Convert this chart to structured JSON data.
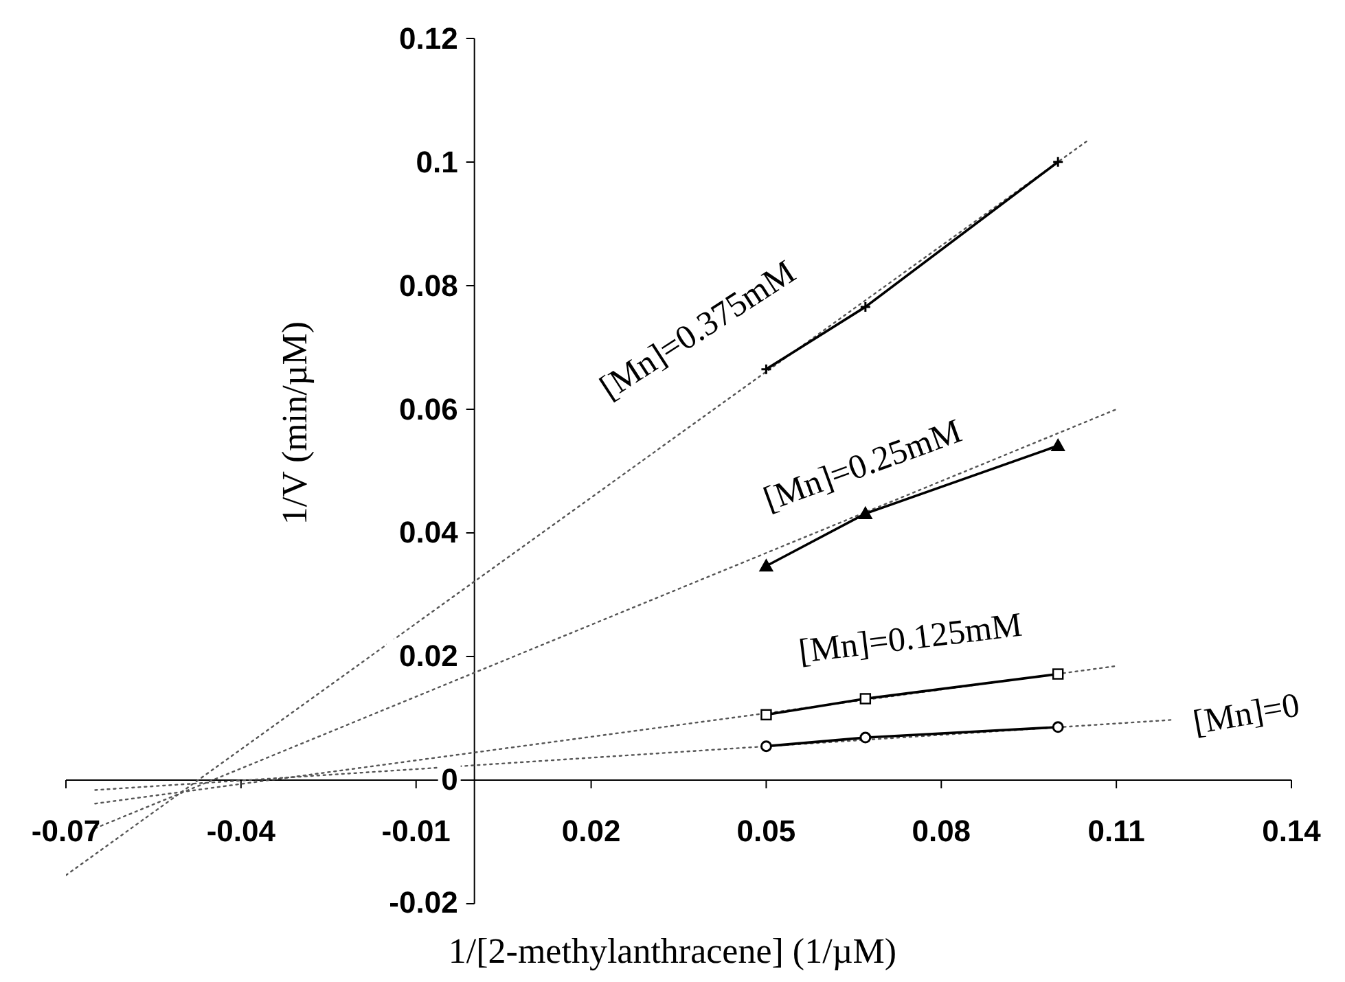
{
  "chart_data": {
    "type": "line",
    "xlabel": "1/[2-methylanthracene] (1/µM)",
    "ylabel": "1/V (min/µM)",
    "xlim": [
      -0.07,
      0.14
    ],
    "xticks": [
      -0.07,
      -0.04,
      -0.01,
      0.02,
      0.05,
      0.08,
      0.11,
      0.14
    ],
    "ylim": [
      -0.02,
      0.12
    ],
    "yticks": [
      -0.02,
      0,
      0.02,
      0.04,
      0.06,
      0.08,
      0.1,
      0.12
    ],
    "grid": false,
    "series": [
      {
        "name": "[Mn]=0",
        "x": [
          -0.065,
          0.12
        ],
        "values": [
          -0.0018,
          0.0096
        ],
        "color": "#555555",
        "marker": "none",
        "line_style": "dotted"
      },
      {
        "name": "[Mn]=0.125mM",
        "x": [
          -0.065,
          0.11
        ],
        "values": [
          -0.004,
          0.0183
        ],
        "color": "#555555",
        "marker": "none",
        "line_style": "dotted"
      },
      {
        "name": "[Mn]=0.25mM",
        "x": [
          -0.065,
          0.11
        ],
        "values": [
          -0.008,
          0.0599
        ],
        "color": "#555555",
        "marker": "none",
        "line_style": "dotted"
      },
      {
        "name": "[Mn]=0.375mM",
        "x": [
          -0.07,
          0.105
        ],
        "values": [
          -0.0156,
          0.1034
        ],
        "color": "#555555",
        "marker": "none",
        "line_style": "dotted"
      },
      {
        "x": [
          0.05,
          0.067,
          0.1
        ],
        "values": [
          0.0053,
          0.0067,
          0.0084
        ],
        "color": "#000000",
        "marker": "circle",
        "line_style": "solid"
      },
      {
        "x": [
          0.05,
          0.067,
          0.1
        ],
        "values": [
          0.0104,
          0.013,
          0.017
        ],
        "color": "#000000",
        "marker": "square",
        "line_style": "solid"
      },
      {
        "x": [
          0.05,
          0.067,
          0.1
        ],
        "values": [
          0.0345,
          0.043,
          0.054
        ],
        "color": "#000000",
        "marker": "triangle",
        "line_style": "solid"
      },
      {
        "x": [
          0.05,
          0.067,
          0.1
        ],
        "values": [
          0.0664,
          0.0765,
          0.1
        ],
        "color": "#000000",
        "marker": "cross",
        "line_style": "solid"
      }
    ]
  }
}
